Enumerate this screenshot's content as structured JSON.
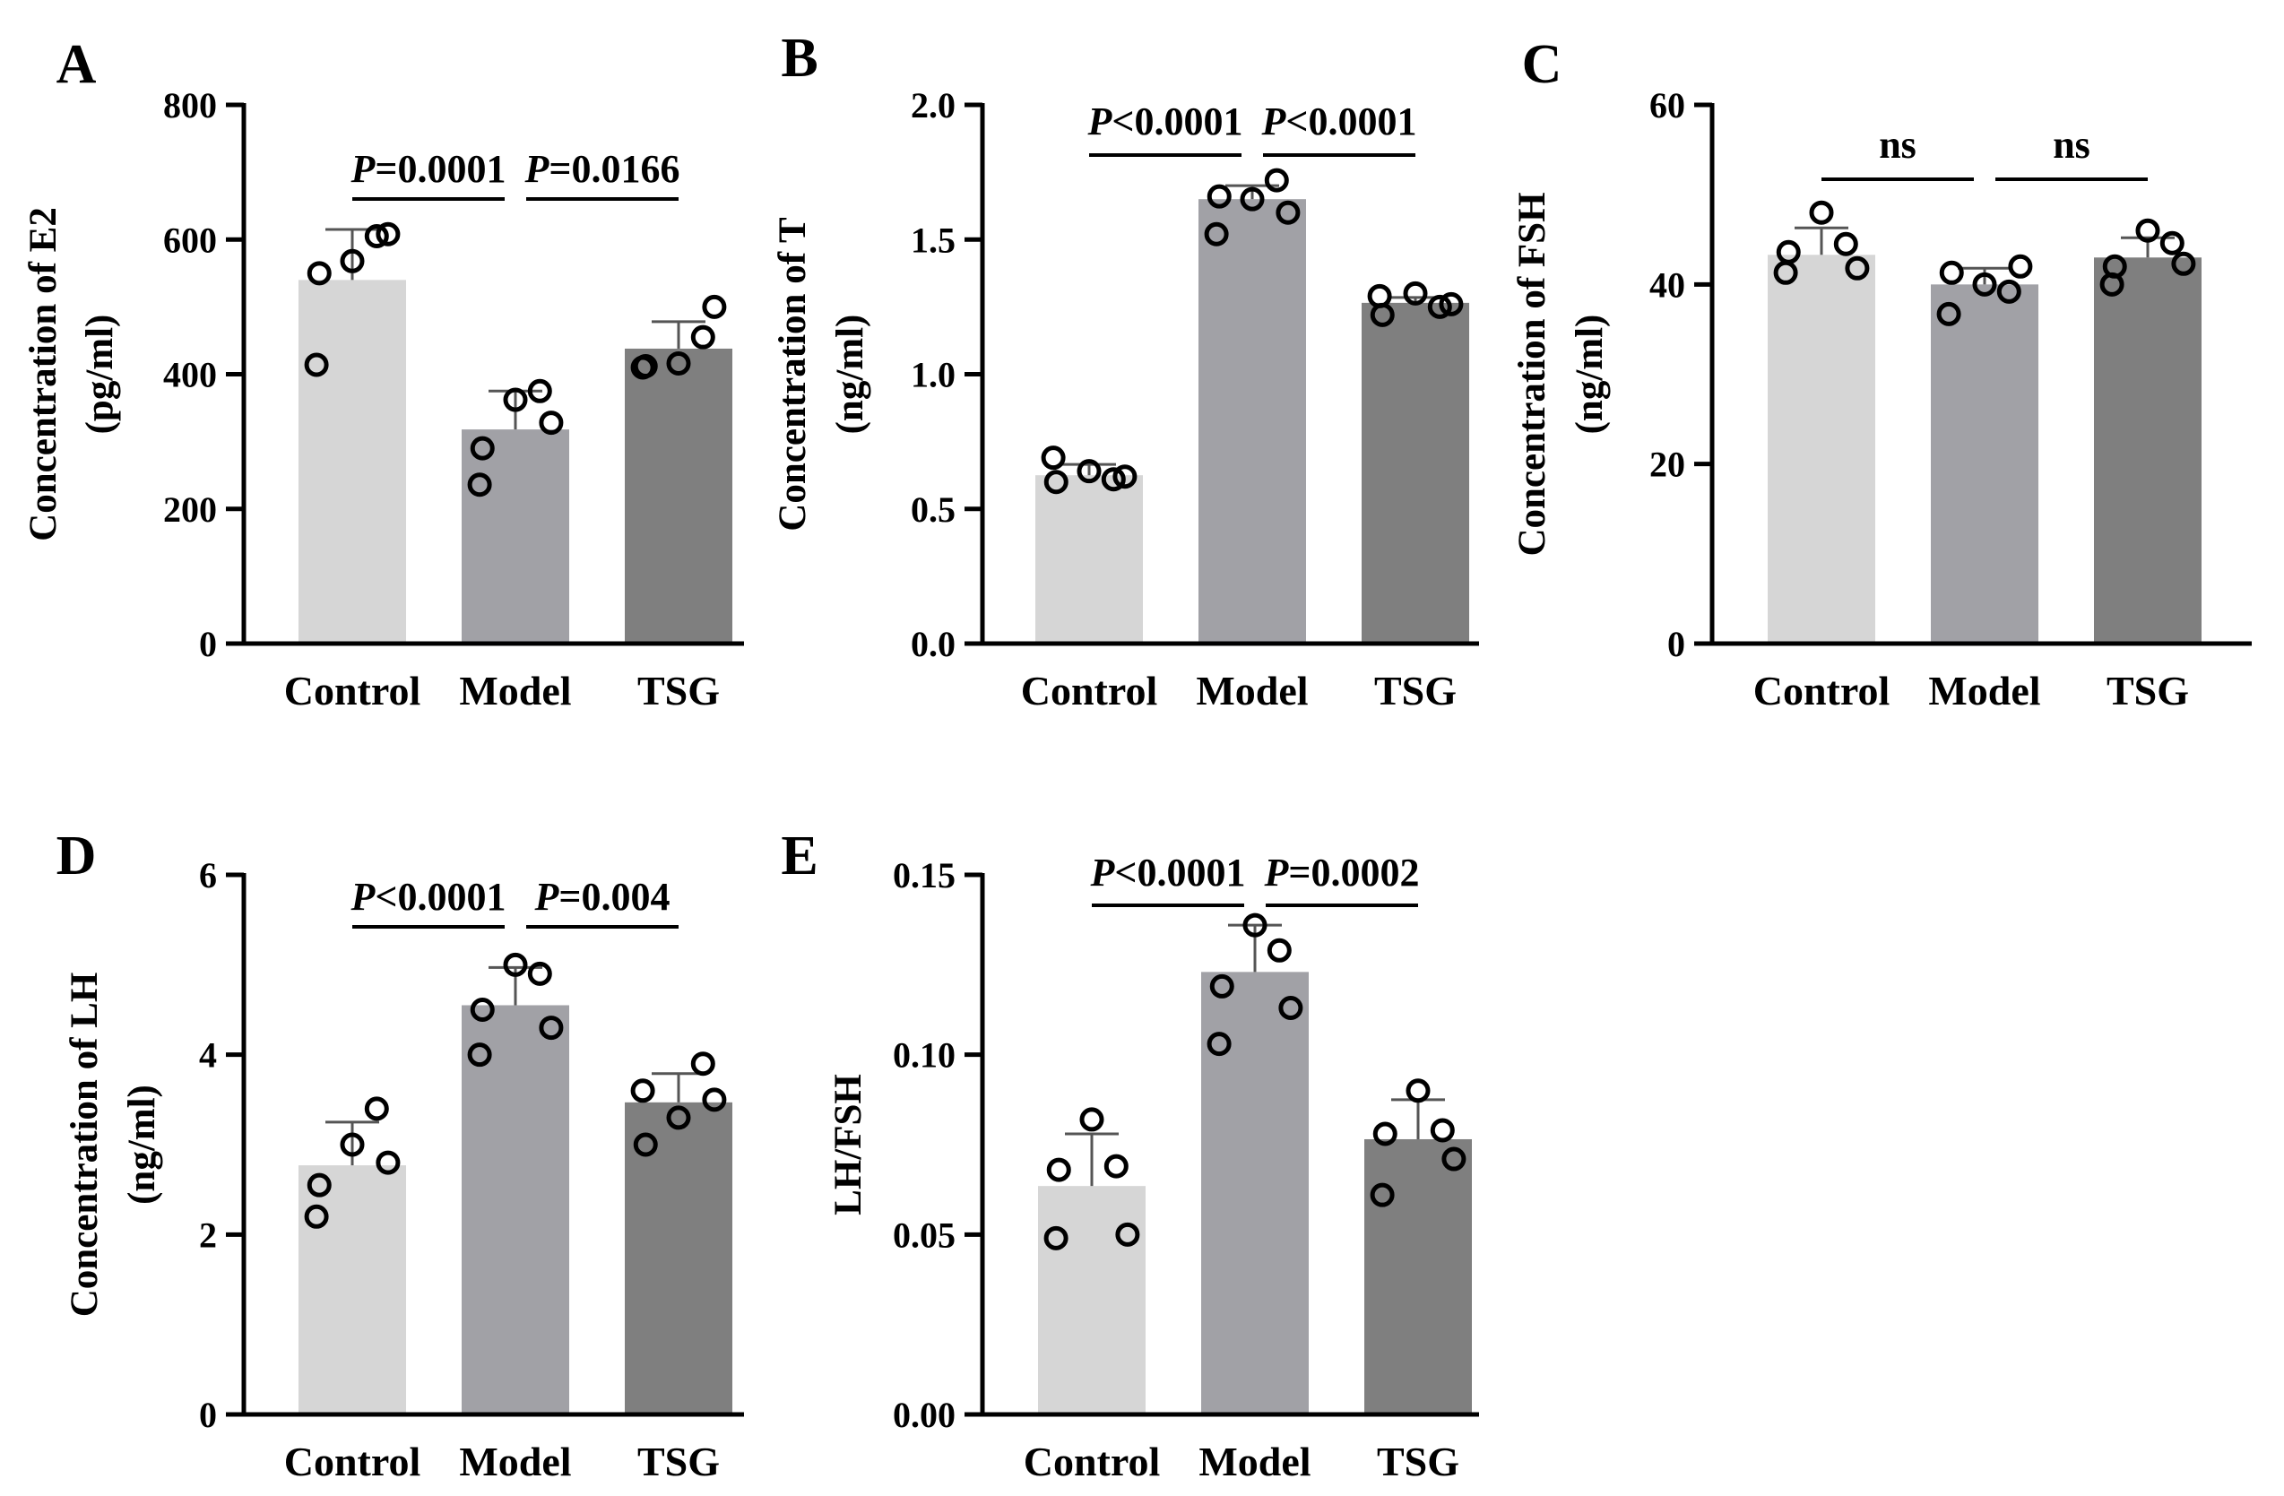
{
  "chart_data": [
    {
      "panel": "A",
      "type": "bar",
      "categories": [
        "Control",
        "Model",
        "TSG"
      ],
      "ylabel": [
        "Concentration of E2",
        "(pg/ml)"
      ],
      "ylim": [
        0,
        800
      ],
      "yticks": [
        0,
        200,
        400,
        600,
        800
      ],
      "ytick_labels": [
        "0",
        "200",
        "400",
        "600",
        "800"
      ],
      "means": [
        540,
        318,
        438
      ],
      "errors": [
        75,
        57,
        40
      ],
      "points": [
        [
          414,
          550,
          568,
          605,
          608
        ],
        [
          236,
          290,
          362,
          375,
          328
        ],
        [
          410,
          412,
          416,
          455,
          500
        ]
      ],
      "significance": [
        {
          "from": 0,
          "to": 1,
          "prefix": "P",
          "text": "=0.0001"
        },
        {
          "from": 1,
          "to": 2,
          "prefix": "P",
          "text": "=0.0166"
        }
      ]
    },
    {
      "panel": "B",
      "type": "bar",
      "categories": [
        "Control",
        "Model",
        "TSG"
      ],
      "ylabel": [
        "Concentration of T",
        "(ng/ml)"
      ],
      "ylim": [
        0,
        2.0
      ],
      "yticks": [
        0,
        0.5,
        1.0,
        1.5,
        2.0
      ],
      "ytick_labels": [
        "0.0",
        "0.5",
        "1.0",
        "1.5",
        "2.0"
      ],
      "means": [
        0.625,
        1.65,
        1.265
      ],
      "errors": [
        0.04,
        0.05,
        0.02
      ],
      "points": [
        [
          0.69,
          0.6,
          0.64,
          0.61,
          0.62
        ],
        [
          1.52,
          1.66,
          1.65,
          1.72,
          1.6
        ],
        [
          1.29,
          1.22,
          1.3,
          1.25,
          1.26
        ]
      ],
      "significance": [
        {
          "from": 0,
          "to": 1,
          "prefix": "P",
          "text": "<0.0001"
        },
        {
          "from": 1,
          "to": 2,
          "prefix": "P",
          "text": "<0.0001"
        }
      ]
    },
    {
      "panel": "C",
      "type": "bar",
      "categories": [
        "Control",
        "Model",
        "TSG"
      ],
      "ylabel": [
        "Concentration of FSH",
        "(ng/ml)"
      ],
      "ylim": [
        0,
        60
      ],
      "yticks": [
        0,
        20,
        40,
        60
      ],
      "ytick_labels": [
        "0",
        "20",
        "40",
        "60"
      ],
      "means": [
        43.3,
        40,
        43
      ],
      "errors": [
        3,
        1.8,
        2.2
      ],
      "points": [
        [
          41.3,
          43.6,
          48,
          44.5,
          41.8
        ],
        [
          36.7,
          41.3,
          40,
          39.2,
          42
        ],
        [
          40,
          42,
          46,
          44.6,
          42.3
        ]
      ],
      "significance": [
        {
          "from": 0,
          "to": 1,
          "prefix": "",
          "text": "ns"
        },
        {
          "from": 1,
          "to": 2,
          "prefix": "",
          "text": "ns"
        }
      ]
    },
    {
      "panel": "D",
      "type": "bar",
      "categories": [
        "Control",
        "Model",
        "TSG"
      ],
      "ylabel": [
        "Concentration of LH",
        "(ng/ml)"
      ],
      "ylim": [
        0,
        6
      ],
      "yticks": [
        0,
        2,
        4,
        6
      ],
      "ytick_labels": [
        "0",
        "2",
        "4",
        "6"
      ],
      "means": [
        2.77,
        4.55,
        3.47
      ],
      "errors": [
        0.48,
        0.42,
        0.32
      ],
      "points": [
        [
          2.2,
          2.55,
          3.0,
          3.4,
          2.8
        ],
        [
          4.0,
          4.5,
          5.0,
          4.9,
          4.3
        ],
        [
          3.6,
          3.0,
          3.3,
          3.9,
          3.5
        ]
      ],
      "significance": [
        {
          "from": 0,
          "to": 1,
          "prefix": "P",
          "text": "<0.0001"
        },
        {
          "from": 1,
          "to": 2,
          "prefix": "P",
          "text": "=0.004"
        }
      ]
    },
    {
      "panel": "E",
      "type": "bar",
      "categories": [
        "Control",
        "Model",
        "TSG"
      ],
      "ylabel": [
        "LH/FSH"
      ],
      "ylim": [
        0,
        0.15
      ],
      "yticks": [
        0,
        0.05,
        0.1,
        0.15
      ],
      "ytick_labels": [
        "0.00",
        "0.05",
        "0.10",
        "0.15"
      ],
      "means": [
        0.0635,
        0.123,
        0.0765
      ],
      "errors": [
        0.0145,
        0.013,
        0.011
      ],
      "points": [
        [
          0.049,
          0.068,
          0.082,
          0.069,
          0.05
        ],
        [
          0.103,
          0.119,
          0.136,
          0.129,
          0.113
        ],
        [
          0.061,
          0.078,
          0.09,
          0.079,
          0.071
        ]
      ],
      "significance": [
        {
          "from": 0,
          "to": 1,
          "prefix": "P",
          "text": "<0.0001"
        },
        {
          "from": 1,
          "to": 2,
          "prefix": "P",
          "text": "=0.0002"
        }
      ]
    }
  ],
  "bar_colors": [
    "#d6d6d6",
    "#a1a1a6",
    "#7f7f7f"
  ]
}
